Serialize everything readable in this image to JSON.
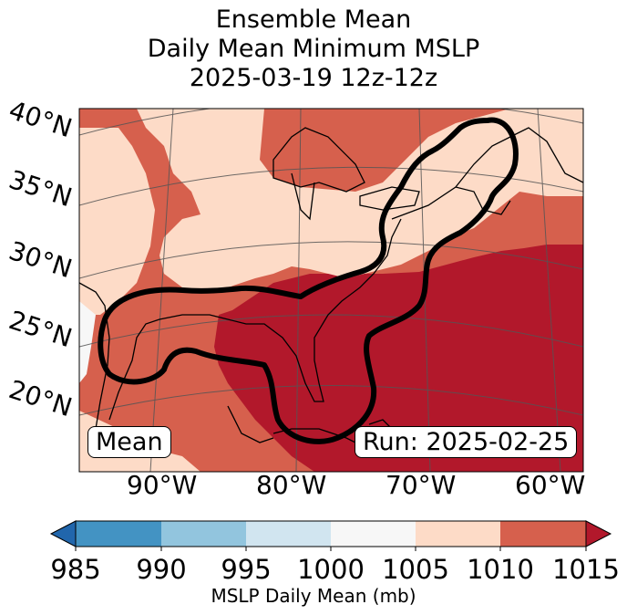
{
  "title": {
    "line1": "Ensemble Mean",
    "line2": "Daily Mean Minimum MSLP",
    "line3": "2025-03-19 12z-12z"
  },
  "map": {
    "lat_labels": [
      "40°N",
      "35°N",
      "30°N",
      "25°N",
      "20°N"
    ],
    "lon_labels": [
      "90°W",
      "80°W",
      "70°W",
      "60°W"
    ],
    "mean_label": "Mean",
    "run_label": "Run: 2025-02-25",
    "region_fill_levels": [
      "1000-1005",
      "1005-1010",
      "1010-1015",
      "1015+"
    ]
  },
  "colorbar": {
    "ticks": [
      "985",
      "990",
      "995",
      "1000",
      "1005",
      "1010",
      "1015"
    ],
    "label": "MSLP Daily Mean (mb)",
    "colors": [
      "#2166ac",
      "#4393c3",
      "#92c5de",
      "#d1e5f0",
      "#f7f7f7",
      "#fddbc7",
      "#d6604d",
      "#b2182b"
    ]
  }
}
